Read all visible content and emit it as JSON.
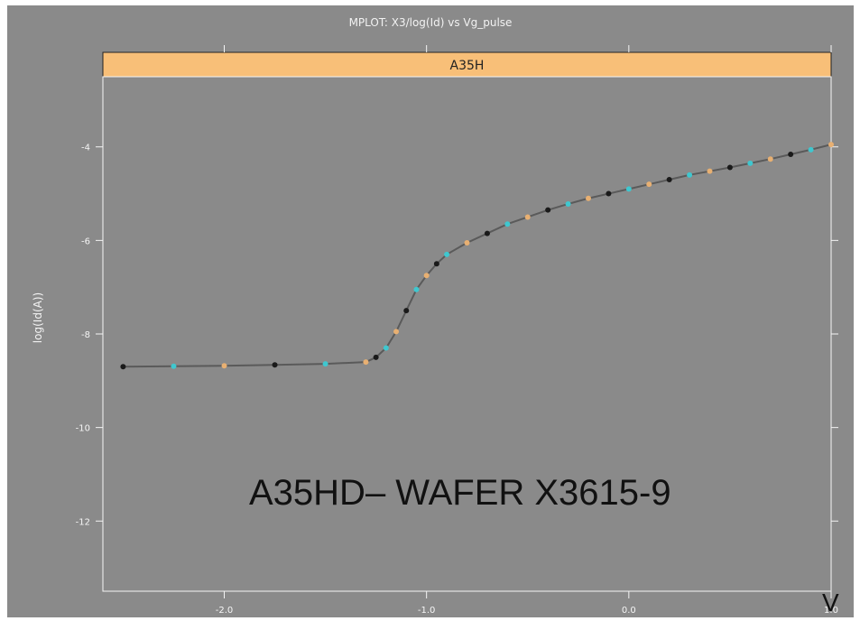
{
  "figure": {
    "title": "MPLOT: X3/log(Id) vs Vg_pulse",
    "annotation": "A35HD– WAFER X3615-9",
    "unit_label": "V"
  },
  "colors": {
    "background": "#8a8a8a",
    "strip": "#f8bf78",
    "axis": "#f5f5f5",
    "curve_line": "#5a5a5a",
    "curve_marks": [
      "#1a1a1a",
      "#3fc7cf",
      "#e8b072"
    ]
  },
  "chart_data": {
    "type": "line",
    "panel_label": "A35H",
    "xlabel": "",
    "ylabel": "log(Id(A))",
    "xlim": [
      -2.6,
      1.0
    ],
    "ylim": [
      -13.5,
      -2.5
    ],
    "x_ticks": [
      -2.0,
      -1.0,
      0.0,
      1.0
    ],
    "x_tick_labels": [
      "-2.0",
      "-1.0",
      "0.0",
      "1.0"
    ],
    "y_ticks": [
      -4,
      -6,
      -8,
      -10,
      -12
    ],
    "y_tick_labels": [
      "-4",
      "-6",
      "-8",
      "-10",
      "-12"
    ],
    "grid": false,
    "series": [
      {
        "x": [
          -2.5,
          -2.25,
          -2.0,
          -1.75,
          -1.5,
          -1.3,
          -1.25,
          -1.2,
          -1.15,
          -1.1,
          -1.05,
          -1.0,
          -0.95,
          -0.9,
          -0.8,
          -0.7,
          -0.6,
          -0.5,
          -0.4,
          -0.3,
          -0.2,
          -0.1,
          0.0,
          0.1,
          0.2,
          0.3,
          0.4,
          0.5,
          0.6,
          0.7,
          0.8,
          0.9,
          1.0
        ],
        "y": [
          -8.7,
          -8.69,
          -8.68,
          -8.66,
          -8.64,
          -8.6,
          -8.5,
          -8.3,
          -7.95,
          -7.5,
          -7.05,
          -6.75,
          -6.5,
          -6.3,
          -6.05,
          -5.85,
          -5.65,
          -5.5,
          -5.35,
          -5.22,
          -5.1,
          -5.0,
          -4.9,
          -4.8,
          -4.7,
          -4.6,
          -4.52,
          -4.44,
          -4.35,
          -4.26,
          -4.16,
          -4.06,
          -3.95
        ]
      }
    ]
  }
}
